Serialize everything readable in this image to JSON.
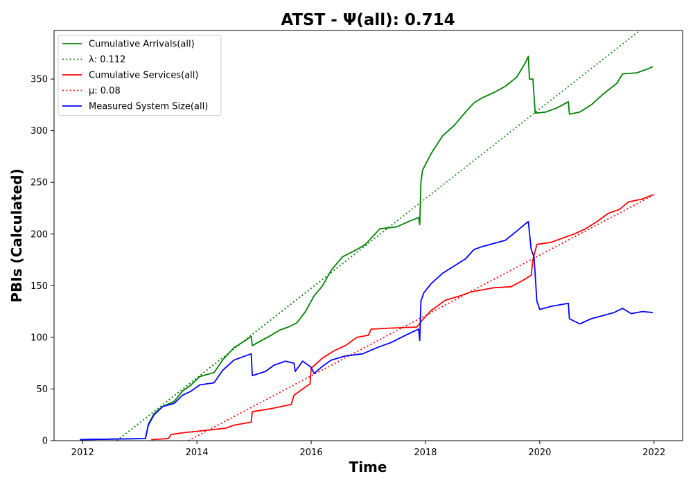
{
  "chart_data": {
    "type": "line",
    "title": "ATST -  Ψ(all): 0.714",
    "xlabel": "Time",
    "ylabel": "PBIs (Calculated)",
    "xlim": [
      2011.5,
      2022.5
    ],
    "ylim": [
      0,
      397
    ],
    "xticks": [
      2012,
      2014,
      2016,
      2018,
      2020,
      2022
    ],
    "yticks": [
      0,
      50,
      100,
      150,
      200,
      250,
      300,
      350
    ],
    "grid": false,
    "legend_position": "top-left",
    "series": [
      {
        "name": "Cumulative Arrivals(all)",
        "color": "#008000",
        "style": "solid",
        "points": [
          [
            2011.95,
            1
          ],
          [
            2013.1,
            2
          ],
          [
            2013.15,
            16
          ],
          [
            2013.25,
            26
          ],
          [
            2013.4,
            33
          ],
          [
            2013.6,
            38
          ],
          [
            2013.75,
            48
          ],
          [
            2013.9,
            54
          ],
          [
            2014.05,
            62
          ],
          [
            2014.3,
            66
          ],
          [
            2014.45,
            78
          ],
          [
            2014.65,
            90
          ],
          [
            2014.85,
            97
          ],
          [
            2014.95,
            101
          ],
          [
            2014.97,
            92
          ],
          [
            2015.1,
            96
          ],
          [
            2015.3,
            102
          ],
          [
            2015.45,
            107
          ],
          [
            2015.6,
            110
          ],
          [
            2015.75,
            114
          ],
          [
            2015.9,
            125
          ],
          [
            2016.05,
            140
          ],
          [
            2016.2,
            150
          ],
          [
            2016.35,
            165
          ],
          [
            2016.55,
            178
          ],
          [
            2016.8,
            185
          ],
          [
            2016.95,
            190
          ],
          [
            2017.1,
            199
          ],
          [
            2017.2,
            205
          ],
          [
            2017.5,
            207
          ],
          [
            2017.7,
            212
          ],
          [
            2017.88,
            216
          ],
          [
            2017.9,
            209
          ],
          [
            2017.92,
            250
          ],
          [
            2017.95,
            262
          ],
          [
            2018.1,
            278
          ],
          [
            2018.3,
            295
          ],
          [
            2018.5,
            305
          ],
          [
            2018.7,
            318
          ],
          [
            2018.85,
            327
          ],
          [
            2019.0,
            332
          ],
          [
            2019.2,
            337
          ],
          [
            2019.4,
            343
          ],
          [
            2019.6,
            352
          ],
          [
            2019.75,
            366
          ],
          [
            2019.8,
            372
          ],
          [
            2019.82,
            350
          ],
          [
            2019.88,
            350
          ],
          [
            2019.92,
            317
          ],
          [
            2020.1,
            318
          ],
          [
            2020.3,
            322
          ],
          [
            2020.5,
            328
          ],
          [
            2020.52,
            316
          ],
          [
            2020.7,
            318
          ],
          [
            2020.9,
            325
          ],
          [
            2021.1,
            335
          ],
          [
            2021.35,
            346
          ],
          [
            2021.45,
            355
          ],
          [
            2021.7,
            356
          ],
          [
            2021.9,
            360
          ],
          [
            2021.98,
            362
          ]
        ]
      },
      {
        "name": "λ: 0.112",
        "color": "#008000",
        "style": "dotted",
        "points": [
          [
            2012.6,
            0
          ],
          [
            2021.75,
            397
          ]
        ]
      },
      {
        "name": "Cumulative Services(all)",
        "color": "#ff0000",
        "style": "solid",
        "points": [
          [
            2013.2,
            1
          ],
          [
            2013.5,
            2
          ],
          [
            2013.55,
            6
          ],
          [
            2013.8,
            8
          ],
          [
            2014.0,
            9
          ],
          [
            2014.15,
            10
          ],
          [
            2014.5,
            12
          ],
          [
            2014.65,
            15
          ],
          [
            2014.95,
            18
          ],
          [
            2014.97,
            28
          ],
          [
            2015.3,
            31
          ],
          [
            2015.65,
            35
          ],
          [
            2015.7,
            44
          ],
          [
            2015.9,
            52
          ],
          [
            2015.98,
            55
          ],
          [
            2016.0,
            70
          ],
          [
            2016.2,
            80
          ],
          [
            2016.4,
            87
          ],
          [
            2016.6,
            92
          ],
          [
            2016.8,
            100
          ],
          [
            2017.0,
            102
          ],
          [
            2017.05,
            108
          ],
          [
            2017.4,
            109
          ],
          [
            2017.85,
            110
          ],
          [
            2017.95,
            117
          ],
          [
            2018.1,
            126
          ],
          [
            2018.25,
            132
          ],
          [
            2018.35,
            136
          ],
          [
            2018.6,
            140
          ],
          [
            2018.8,
            144
          ],
          [
            2019.0,
            146
          ],
          [
            2019.2,
            148
          ],
          [
            2019.5,
            149
          ],
          [
            2019.7,
            155
          ],
          [
            2019.85,
            160
          ],
          [
            2019.88,
            175
          ],
          [
            2019.95,
            190
          ],
          [
            2020.2,
            192
          ],
          [
            2020.4,
            196
          ],
          [
            2020.6,
            200
          ],
          [
            2020.8,
            205
          ],
          [
            2021.0,
            212
          ],
          [
            2021.2,
            220
          ],
          [
            2021.4,
            224
          ],
          [
            2021.55,
            231
          ],
          [
            2021.8,
            234
          ],
          [
            2021.98,
            238
          ]
        ]
      },
      {
        "name": "μ: 0.08",
        "color": "#ff0000",
        "style": "dotted",
        "points": [
          [
            2013.85,
            0
          ],
          [
            2022.0,
            238
          ]
        ]
      },
      {
        "name": "Measured System Size(all)",
        "color": "#0000ff",
        "style": "solid",
        "points": [
          [
            2011.95,
            1
          ],
          [
            2013.1,
            2
          ],
          [
            2013.15,
            15
          ],
          [
            2013.25,
            25
          ],
          [
            2013.4,
            33
          ],
          [
            2013.6,
            36
          ],
          [
            2013.75,
            44
          ],
          [
            2013.9,
            48
          ],
          [
            2014.05,
            54
          ],
          [
            2014.3,
            56
          ],
          [
            2014.45,
            68
          ],
          [
            2014.65,
            78
          ],
          [
            2014.85,
            82
          ],
          [
            2014.95,
            84
          ],
          [
            2014.97,
            63
          ],
          [
            2015.2,
            67
          ],
          [
            2015.35,
            73
          ],
          [
            2015.55,
            77
          ],
          [
            2015.7,
            75
          ],
          [
            2015.72,
            67
          ],
          [
            2015.85,
            77
          ],
          [
            2016.0,
            71
          ],
          [
            2016.05,
            65
          ],
          [
            2016.2,
            72
          ],
          [
            2016.35,
            78
          ],
          [
            2016.6,
            82
          ],
          [
            2016.9,
            84
          ],
          [
            2017.15,
            90
          ],
          [
            2017.4,
            95
          ],
          [
            2017.65,
            102
          ],
          [
            2017.88,
            108
          ],
          [
            2017.9,
            97
          ],
          [
            2017.92,
            135
          ],
          [
            2017.97,
            143
          ],
          [
            2018.1,
            152
          ],
          [
            2018.3,
            162
          ],
          [
            2018.5,
            169
          ],
          [
            2018.7,
            176
          ],
          [
            2018.85,
            185
          ],
          [
            2019.0,
            188
          ],
          [
            2019.2,
            191
          ],
          [
            2019.4,
            194
          ],
          [
            2019.6,
            203
          ],
          [
            2019.75,
            210
          ],
          [
            2019.8,
            212
          ],
          [
            2019.85,
            185
          ],
          [
            2019.9,
            178
          ],
          [
            2019.95,
            135
          ],
          [
            2020.0,
            127
          ],
          [
            2020.2,
            130
          ],
          [
            2020.5,
            133
          ],
          [
            2020.52,
            118
          ],
          [
            2020.7,
            113
          ],
          [
            2020.9,
            118
          ],
          [
            2021.1,
            121
          ],
          [
            2021.3,
            124
          ],
          [
            2021.45,
            128
          ],
          [
            2021.6,
            123
          ],
          [
            2021.8,
            125
          ],
          [
            2021.98,
            124
          ]
        ]
      }
    ]
  }
}
